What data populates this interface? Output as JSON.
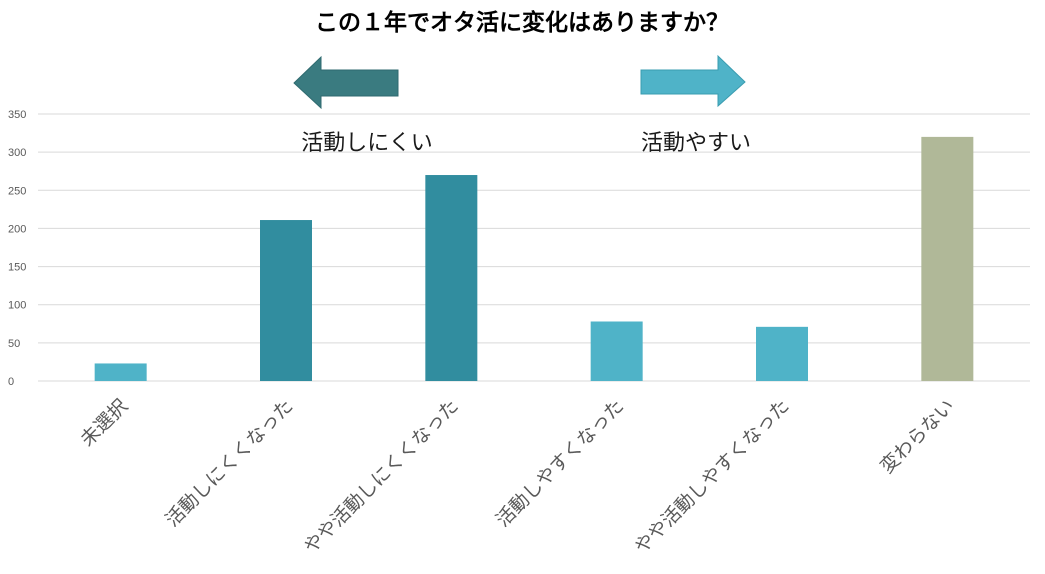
{
  "chart_data": {
    "type": "bar",
    "title": "この１年でオタ活に変化はありますか？",
    "categories": [
      "未選択",
      "活動しにくくなった",
      "やや活動しにくくなった",
      "活動しやすくなった",
      "やや活動しやすくなった",
      "変わらない"
    ],
    "values": [
      23,
      211,
      270,
      78,
      71,
      320
    ],
    "ylim": [
      0,
      350
    ],
    "yticks": [
      0,
      50,
      100,
      150,
      200,
      250,
      300,
      350
    ],
    "grid": true,
    "legend": "none",
    "bar_colors": [
      "#4fb3c8",
      "#318d9f",
      "#318d9f",
      "#4fb3c8",
      "#4fb3c8",
      "#b0b898"
    ],
    "annotations": {
      "left_label": "活動しにくい",
      "left_arrow_color": "#3a7b80",
      "right_label": "活動やすい",
      "right_arrow_color": "#4fb3c8"
    }
  }
}
